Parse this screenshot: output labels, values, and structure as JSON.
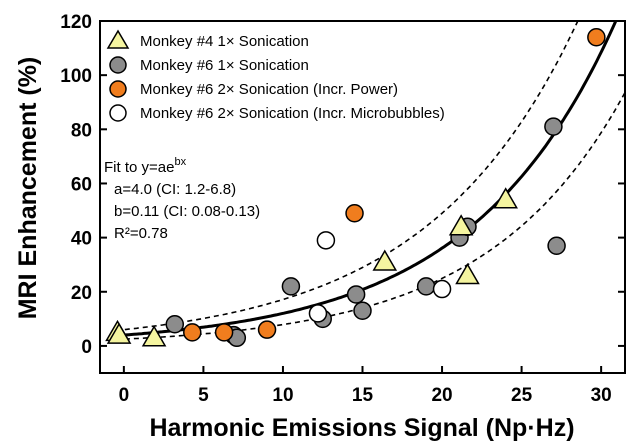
{
  "chart_data": {
    "type": "scatter",
    "xlabel": "Harmonic Emissions Signal (Np·Hz)",
    "ylabel": "MRI Enhancement (%)",
    "xlim": [
      -1.5,
      31.5
    ],
    "ylim": [
      -10,
      120
    ],
    "xticks": [
      "0",
      "5",
      "10",
      "15",
      "20",
      "25",
      "30"
    ],
    "yticks": [
      "0",
      "20",
      "40",
      "60",
      "80",
      "100",
      "120"
    ],
    "grid": false,
    "legend_position": "top-left",
    "series": [
      {
        "name": "Monkey #4 1× Sonication",
        "marker": "triangle",
        "color": "#f5f5a0",
        "points": [
          [
            -0.4,
            5
          ],
          [
            -0.3,
            4
          ],
          [
            1.9,
            3
          ],
          [
            16.4,
            31
          ],
          [
            21.2,
            44
          ],
          [
            21.6,
            26
          ],
          [
            24.0,
            54
          ]
        ]
      },
      {
        "name": "Monkey #6 1× Sonication",
        "marker": "circle",
        "color": "#8c8c8c",
        "points": [
          [
            3.2,
            8
          ],
          [
            6.9,
            4
          ],
          [
            7.1,
            3
          ],
          [
            10.5,
            22
          ],
          [
            12.5,
            10
          ],
          [
            14.6,
            19
          ],
          [
            15.0,
            13
          ],
          [
            19.0,
            22
          ],
          [
            21.1,
            40
          ],
          [
            21.6,
            44
          ],
          [
            27.0,
            81
          ],
          [
            27.2,
            37
          ]
        ]
      },
      {
        "name": "Monkey #6 2× Sonication (Incr. Power)",
        "marker": "circle",
        "color": "#f07d1e",
        "points": [
          [
            4.3,
            5
          ],
          [
            6.3,
            5
          ],
          [
            9.0,
            6
          ],
          [
            14.5,
            49
          ],
          [
            29.7,
            114
          ]
        ]
      },
      {
        "name": "Monkey #6 2× Sonication (Incr. Microbubbles)",
        "marker": "circle",
        "color": "#ffffff",
        "points": [
          [
            12.2,
            12
          ],
          [
            12.7,
            39
          ],
          [
            20.0,
            21
          ]
        ]
      }
    ],
    "fit": {
      "text_line1": "Fit to y=ae",
      "text_sup": "bx",
      "a_text": "a=4.0 (CI: 1.2-6.8)",
      "b_text": "b=0.11 (CI: 0.08-0.13)",
      "r2_text": "R²=0.78",
      "a": 4.0,
      "b": 0.11,
      "ci_upper": {
        "a": 6.0,
        "b": 0.105
      },
      "ci_lower": {
        "a": 2.5,
        "b": 0.115
      }
    }
  }
}
